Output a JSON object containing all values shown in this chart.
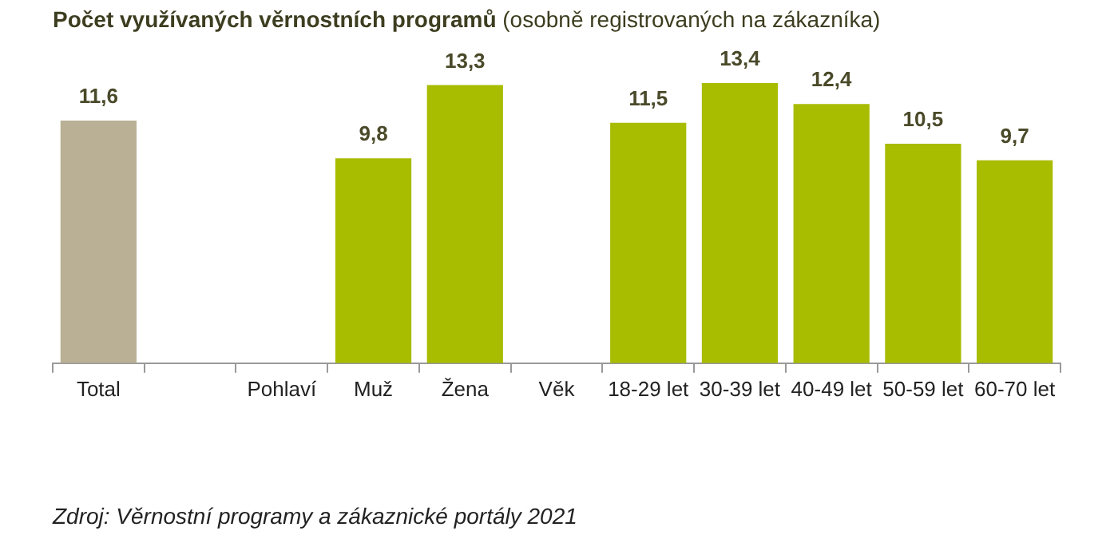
{
  "chart_data": {
    "type": "bar",
    "title": "Počet využívaných věrnostních programů",
    "subtitle": "(osobně registrovaných na zákazníka)",
    "categories": [
      "Total",
      null,
      "Pohlaví",
      "Muž",
      "Žena",
      "Věk",
      "18-29 let",
      "30-39 let",
      "40-49 let",
      "50-59 let",
      "60-70 let"
    ],
    "values": [
      11.6,
      null,
      null,
      9.8,
      13.3,
      null,
      11.5,
      13.4,
      12.4,
      10.5,
      9.7
    ],
    "colors": [
      "#b9b095",
      "#a8bc00",
      "#a8bc00",
      "#a8bc00",
      "#a8bc00",
      "#a8bc00",
      "#a8bc00",
      "#a8bc00",
      "#a8bc00",
      "#a8bc00",
      "#a8bc00"
    ],
    "value_labels": [
      "11,6",
      null,
      null,
      "9,8",
      "13,3",
      null,
      "11,5",
      "13,4",
      "12,4",
      "10,5",
      "9,7"
    ],
    "grid": false,
    "legend": false,
    "annotations": [
      "Zdroj: Věrnostní programy a zákaznické portály 2021"
    ]
  }
}
